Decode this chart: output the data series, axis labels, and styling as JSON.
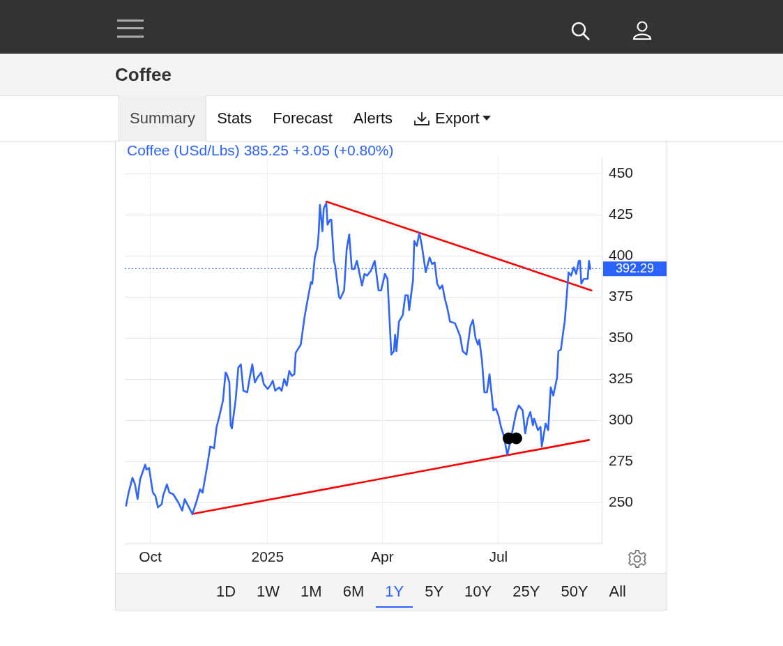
{
  "chart_data": {
    "type": "line",
    "title": "Coffee",
    "subtitle": "Coffee (USd/Lbs) 385.25 +3.05 (+0.80%)",
    "annotations": [
      "Summary",
      "Stats",
      "Forecast",
      "Alerts",
      "Export",
      "1D",
      "1W",
      "1M",
      "6M",
      "1Y",
      "5Y",
      "10Y",
      "25Y",
      "50Y",
      "All"
    ],
    "xlim": [
      "2024-09-11",
      "2025-09-20"
    ],
    "xticks": [
      {
        "value": "2024-10-01",
        "label": "Oct"
      },
      {
        "value": "2025-01-01",
        "label": "2025"
      },
      {
        "value": "2025-04-01",
        "label": "Apr"
      },
      {
        "value": "2025-07-01",
        "label": "Jul"
      }
    ],
    "ylim": [
      225,
      460
    ],
    "yticks": [
      250,
      275,
      300,
      325,
      350,
      375,
      400,
      425,
      450
    ],
    "grid": true,
    "legend": false,
    "ref_lines": [
      {
        "axis": "y",
        "value": 392.29,
        "label": "392.29",
        "color": "#2962ff",
        "line_style": "dotted"
      }
    ],
    "series": [
      {
        "type": "line",
        "color": "#2f66f8",
        "marker": "none",
        "line_style": "solid",
        "x": [
          "2024-09-12",
          "2024-09-14",
          "2024-09-17",
          "2024-09-19",
          "2024-09-21",
          "2024-09-23",
          "2024-09-27",
          "2024-09-28",
          "2024-09-30",
          "2024-10-03",
          "2024-10-05",
          "2024-10-07",
          "2024-10-10",
          "2024-10-11",
          "2024-10-14",
          "2024-10-16",
          "2024-10-19",
          "2024-10-23",
          "2024-10-26",
          "2024-10-28",
          "2024-11-03",
          "2024-11-06",
          "2024-11-09",
          "2024-11-11",
          "2024-11-15",
          "2024-11-17",
          "2024-11-20",
          "2024-11-22",
          "2024-11-24",
          "2024-11-27",
          "2024-11-29",
          "2024-11-30",
          "2024-12-02",
          "2024-12-03",
          "2024-12-04",
          "2024-12-07",
          "2024-12-09",
          "2024-12-11",
          "2024-12-13",
          "2024-12-16",
          "2024-12-18",
          "2024-12-20",
          "2024-12-22",
          "2024-12-24",
          "2024-12-27",
          "2024-12-29",
          "2025-01-01",
          "2025-01-03",
          "2025-01-05",
          "2025-01-07",
          "2025-01-10",
          "2025-01-12",
          "2025-01-14",
          "2025-01-16",
          "2025-01-18",
          "2025-01-20",
          "2025-01-22",
          "2025-01-23",
          "2025-01-27",
          "2025-01-30",
          "2025-02-02",
          "2025-02-04",
          "2025-02-05",
          "2025-02-07",
          "2025-02-09",
          "2025-02-10",
          "2025-02-11",
          "2025-02-13",
          "2025-02-14",
          "2025-02-16",
          "2025-02-17",
          "2025-02-19",
          "2025-02-20",
          "2025-02-22",
          "2025-02-23",
          "2025-02-26",
          "2025-02-27",
          "2025-03-02",
          "2025-03-04",
          "2025-03-06",
          "2025-03-08",
          "2025-03-10",
          "2025-03-12",
          "2025-03-16",
          "2025-03-18",
          "2025-03-20",
          "2025-03-23",
          "2025-03-26",
          "2025-03-29",
          "2025-03-31",
          "2025-04-03",
          "2025-04-05",
          "2025-04-08",
          "2025-04-10",
          "2025-04-11",
          "2025-04-12",
          "2025-04-14",
          "2025-04-17",
          "2025-04-19",
          "2025-04-21",
          "2025-04-22",
          "2025-04-25",
          "2025-04-26",
          "2025-04-28",
          "2025-04-30",
          "2025-05-02",
          "2025-05-05",
          "2025-05-08",
          "2025-05-10",
          "2025-05-12",
          "2025-05-14",
          "2025-05-16",
          "2025-05-18",
          "2025-05-20",
          "2025-05-22",
          "2025-05-24",
          "2025-05-28",
          "2025-06-01",
          "2025-06-03",
          "2025-06-06",
          "2025-06-09",
          "2025-06-11",
          "2025-06-13",
          "2025-06-15",
          "2025-06-16",
          "2025-06-18",
          "2025-06-20",
          "2025-06-22",
          "2025-06-24",
          "2025-06-27",
          "2025-06-29",
          "2025-07-01",
          "2025-07-03",
          "2025-07-05",
          "2025-07-08",
          "2025-07-10",
          "2025-07-12",
          "2025-07-15",
          "2025-07-17",
          "2025-07-20",
          "2025-07-22",
          "2025-07-24",
          "2025-07-26",
          "2025-07-28",
          "2025-07-29",
          "2025-08-01",
          "2025-08-03",
          "2025-08-04",
          "2025-08-07",
          "2025-08-09",
          "2025-08-11",
          "2025-08-13",
          "2025-08-16",
          "2025-08-17",
          "2025-08-19",
          "2025-08-21",
          "2025-08-22",
          "2025-08-25",
          "2025-08-27",
          "2025-08-29",
          "2025-08-31",
          "2025-09-02",
          "2025-09-03",
          "2025-09-04",
          "2025-09-06",
          "2025-09-09",
          "2025-09-10",
          "2025-09-11"
        ],
        "values": [
          248,
          256,
          265,
          261,
          252,
          264,
          273,
          270,
          271,
          256,
          254,
          247,
          249,
          254,
          261,
          256,
          255,
          250,
          245,
          252,
          243,
          250,
          258,
          256,
          274,
          284,
          283,
          296,
          302,
          312,
          329,
          328,
          323,
          297,
          295,
          313,
          332,
          334,
          318,
          317,
          326,
          334,
          323,
          326,
          329,
          322,
          319,
          321,
          324,
          318,
          320,
          318,
          325,
          321,
          330,
          327,
          328,
          341,
          346,
          363,
          376,
          384,
          383,
          399,
          405,
          413,
          431,
          415,
          429,
          432,
          419,
          422,
          422,
          397,
          394,
          375,
          374,
          379,
          404,
          413,
          392,
          392,
          397,
          382,
          389,
          388,
          391,
          397,
          379,
          379,
          389,
          386,
          340,
          342,
          352,
          342,
          360,
          364,
          376,
          376,
          367,
          385,
          409,
          406,
          414,
          406,
          390,
          399,
          395,
          396,
          383,
          380,
          382,
          374,
          368,
          360,
          359,
          351,
          342,
          340,
          357,
          361,
          350,
          346,
          349,
          337,
          317,
          317,
          328,
          306,
          307,
          303,
          296,
          291,
          279,
          286,
          null,
          305,
          309,
          306,
          292,
          301,
          305,
          297,
          301,
          294,
          296,
          284,
          298,
          294,
          320,
          315,
          326,
          342,
          343,
          355,
          360,
          390,
          388,
          393,
          389,
          397,
          397,
          383,
          386,
          386,
          397,
          392
        ]
      },
      {
        "type": "line",
        "color": "#ff0000",
        "marker": "none",
        "line_style": "solid",
        "x": [
          "2025-02-16",
          "2025-09-12"
        ],
        "values": [
          433,
          379
        ]
      },
      {
        "type": "line",
        "color": "#ff0000",
        "marker": "none",
        "line_style": "solid",
        "x": [
          "2024-11-03",
          "2025-09-10"
        ],
        "values": [
          243,
          288
        ]
      },
      {
        "type": "scatter",
        "color": "#000000",
        "marker": "circle",
        "x": [
          "2025-07-09",
          "2025-07-15"
        ],
        "values": [
          289,
          289
        ]
      }
    ]
  }
}
